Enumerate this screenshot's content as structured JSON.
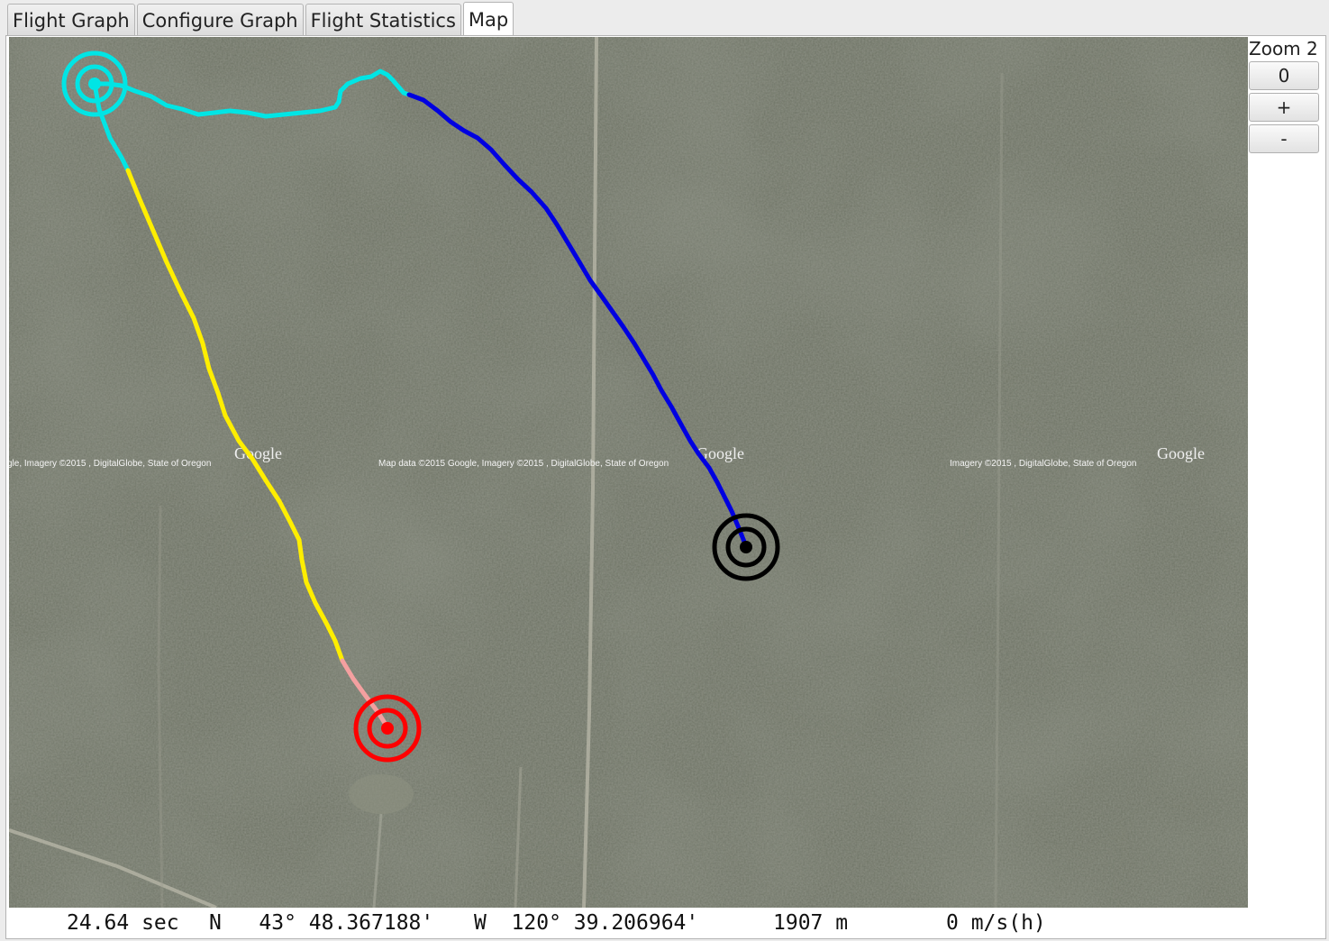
{
  "tabs": [
    {
      "label": "Flight Graph",
      "active": false
    },
    {
      "label": "Configure Graph",
      "active": false
    },
    {
      "label": "Flight Statistics",
      "active": false
    },
    {
      "label": "Map",
      "active": true
    }
  ],
  "zoom": {
    "label": "Zoom 2",
    "buttons": [
      "0",
      "+",
      "-"
    ]
  },
  "map": {
    "imagery_type": "satellite",
    "attributions": [
      "gle, Imagery ©2015 , DigitalGlobe, State of Oregon",
      "Map data ©2015 Google, Imagery ©2015 , DigitalGlobe, State of Oregon",
      "Imagery ©2015 , DigitalGlobe, State of Oregon"
    ],
    "logo_text": "Google",
    "track_colors": {
      "cyan": "#00e5e5",
      "blue": "#0000e0",
      "yellow": "#ffee00",
      "pink": "#f4a0a0"
    },
    "markers": [
      {
        "name": "launch",
        "color": "#00e5e5"
      },
      {
        "name": "apogee",
        "color": "#000000"
      },
      {
        "name": "landing",
        "color": "#ff0000"
      }
    ]
  },
  "status": {
    "time": "24.64 sec",
    "lat": "N   43° 48.367188'",
    "lon": "W  120° 39.206964'",
    "altitude": "1907 m",
    "speed": "0 m/s(h)"
  }
}
